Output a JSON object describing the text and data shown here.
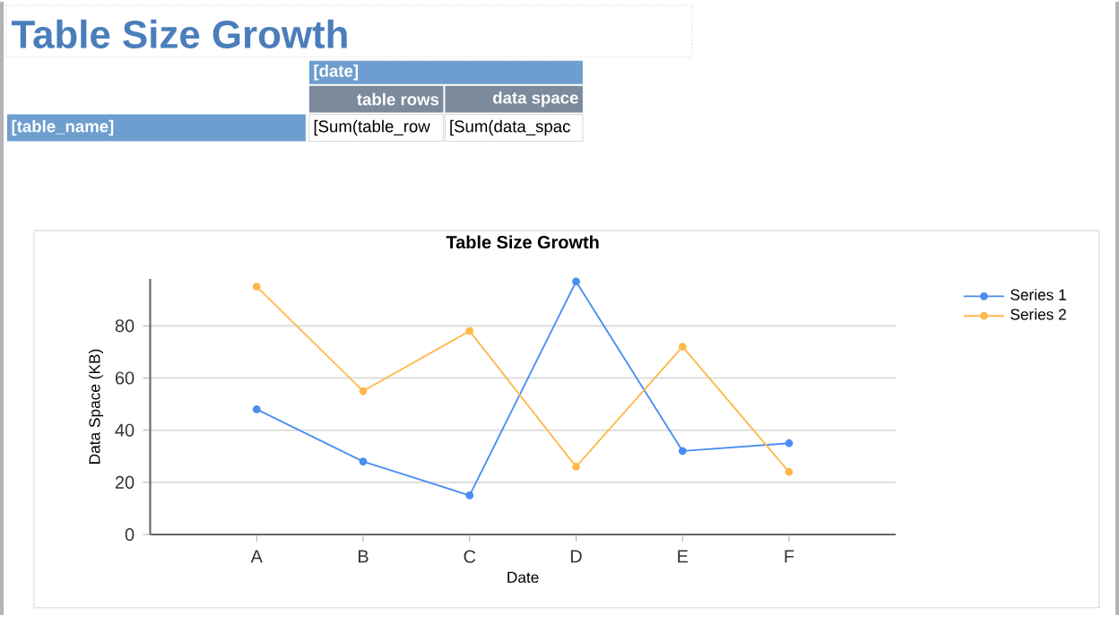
{
  "chart_data": {
    "type": "line",
    "title": "Table Size Growth",
    "xlabel": "Date",
    "ylabel": "Data Space (KB)",
    "annotations": [
      "Table Size Growth",
      "[date]",
      "table rows",
      "data space",
      "[table_name]",
      "[Sum(table_row",
      "[Sum(data_spac"
    ],
    "categories": [
      "A",
      "B",
      "C",
      "D",
      "E",
      "F"
    ],
    "series": [
      {
        "name": "Series 1",
        "color": "#4a8ef0",
        "values": [
          48,
          28,
          15,
          97,
          32,
          35
        ]
      },
      {
        "name": "Series 2",
        "color": "#ffb84d",
        "values": [
          95,
          55,
          78,
          26,
          72,
          24
        ]
      }
    ],
    "ylim": [
      0,
      98
    ],
    "yticks": [
      0,
      20,
      40,
      60,
      80
    ],
    "grid": "y",
    "legend": "right",
    "marker": "circle",
    "line_style": "solid"
  }
}
